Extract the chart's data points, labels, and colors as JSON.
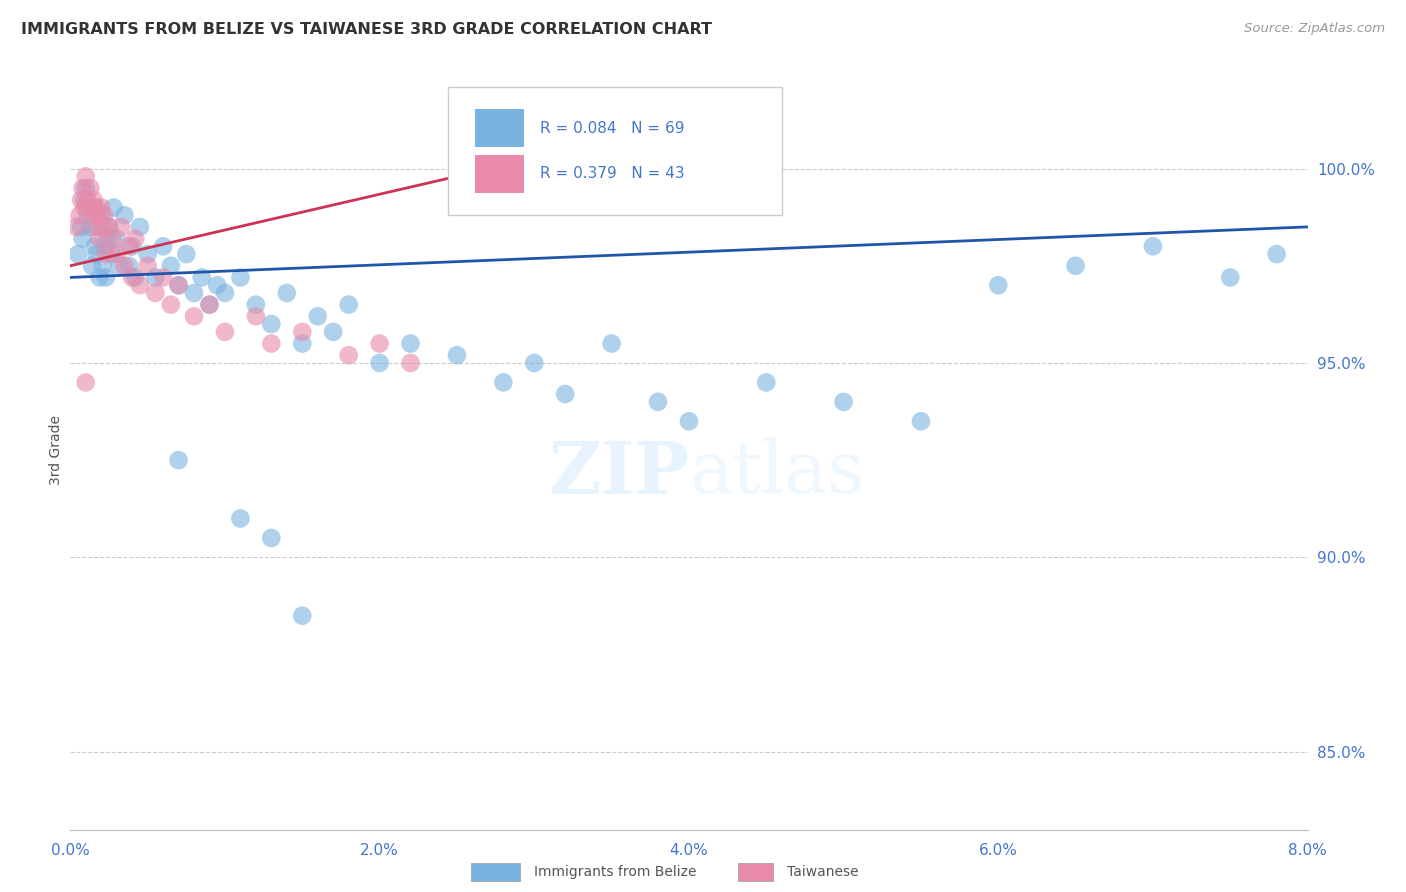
{
  "title": "IMMIGRANTS FROM BELIZE VS TAIWANESE 3RD GRADE CORRELATION CHART",
  "source": "Source: ZipAtlas.com",
  "ylabel": "3rd Grade",
  "xlim": [
    0.0,
    8.0
  ],
  "ylim": [
    83.0,
    102.5
  ],
  "yticks": [
    85.0,
    90.0,
    95.0,
    100.0
  ],
  "ytick_labels": [
    "85.0%",
    "90.0%",
    "95.0%",
    "100.0%"
  ],
  "xticks": [
    0.0,
    2.0,
    4.0,
    6.0,
    8.0
  ],
  "xtick_labels": [
    "0.0%",
    "2.0%",
    "4.0%",
    "6.0%",
    "8.0%"
  ],
  "legend_blue_r": "R = 0.084",
  "legend_blue_n": "N = 69",
  "legend_pink_r": "R = 0.379",
  "legend_pink_n": "N = 43",
  "legend1_label": "Immigrants from Belize",
  "legend2_label": "Taiwanese",
  "blue_color": "#7ab3e0",
  "pink_color": "#e88aaa",
  "trendline_blue_color": "#2255aa",
  "trendline_pink_color": "#cc3355",
  "tick_color": "#4477cc",
  "watermark_zip": "ZIP",
  "watermark_atlas": "atlas",
  "blue_scatter_x": [
    0.05,
    0.07,
    0.08,
    0.09,
    0.1,
    0.11,
    0.12,
    0.13,
    0.14,
    0.15,
    0.16,
    0.17,
    0.18,
    0.19,
    0.2,
    0.21,
    0.22,
    0.23,
    0.24,
    0.25,
    0.27,
    0.28,
    0.3,
    0.32,
    0.35,
    0.38,
    0.4,
    0.42,
    0.45,
    0.5,
    0.55,
    0.6,
    0.65,
    0.7,
    0.75,
    0.8,
    0.85,
    0.9,
    0.95,
    1.0,
    1.1,
    1.2,
    1.3,
    1.4,
    1.5,
    1.6,
    1.7,
    1.8,
    2.0,
    2.2,
    2.5,
    2.8,
    3.0,
    3.2,
    3.5,
    3.8,
    4.0,
    4.5,
    5.0,
    5.5,
    6.0,
    6.5,
    7.0,
    7.5,
    7.8,
    1.1,
    1.3,
    0.7,
    1.5
  ],
  "blue_scatter_y": [
    97.8,
    98.5,
    98.2,
    99.2,
    99.5,
    98.8,
    99.0,
    98.5,
    97.5,
    99.0,
    98.0,
    97.8,
    98.5,
    97.2,
    98.8,
    97.5,
    98.0,
    97.2,
    98.2,
    98.5,
    97.8,
    99.0,
    98.2,
    97.5,
    98.8,
    97.5,
    98.0,
    97.2,
    98.5,
    97.8,
    97.2,
    98.0,
    97.5,
    97.0,
    97.8,
    96.8,
    97.2,
    96.5,
    97.0,
    96.8,
    97.2,
    96.5,
    96.0,
    96.8,
    95.5,
    96.2,
    95.8,
    96.5,
    95.0,
    95.5,
    95.2,
    94.5,
    95.0,
    94.2,
    95.5,
    94.0,
    93.5,
    94.5,
    94.0,
    93.5,
    97.0,
    97.5,
    98.0,
    97.2,
    97.8,
    91.0,
    90.5,
    92.5,
    88.5
  ],
  "pink_scatter_x": [
    0.04,
    0.06,
    0.07,
    0.08,
    0.09,
    0.1,
    0.11,
    0.12,
    0.13,
    0.14,
    0.15,
    0.16,
    0.17,
    0.18,
    0.19,
    0.2,
    0.21,
    0.22,
    0.23,
    0.25,
    0.27,
    0.3,
    0.33,
    0.35,
    0.38,
    0.4,
    0.42,
    0.45,
    0.5,
    0.55,
    0.6,
    0.65,
    0.7,
    0.8,
    0.9,
    1.0,
    1.2,
    1.3,
    1.5,
    1.8,
    2.0,
    2.2,
    0.1
  ],
  "pink_scatter_y": [
    98.5,
    98.8,
    99.2,
    99.5,
    99.0,
    99.8,
    99.2,
    99.0,
    99.5,
    98.8,
    99.2,
    98.5,
    99.0,
    98.8,
    98.2,
    99.0,
    98.5,
    98.8,
    97.8,
    98.5,
    98.2,
    97.8,
    98.5,
    97.5,
    98.0,
    97.2,
    98.2,
    97.0,
    97.5,
    96.8,
    97.2,
    96.5,
    97.0,
    96.2,
    96.5,
    95.8,
    96.2,
    95.5,
    95.8,
    95.2,
    95.5,
    95.0,
    94.5
  ],
  "blue_trend_x": [
    0.0,
    8.0
  ],
  "blue_trend_y": [
    97.2,
    98.5
  ],
  "pink_trend_x": [
    0.0,
    2.5
  ],
  "pink_trend_y": [
    97.5,
    99.8
  ]
}
